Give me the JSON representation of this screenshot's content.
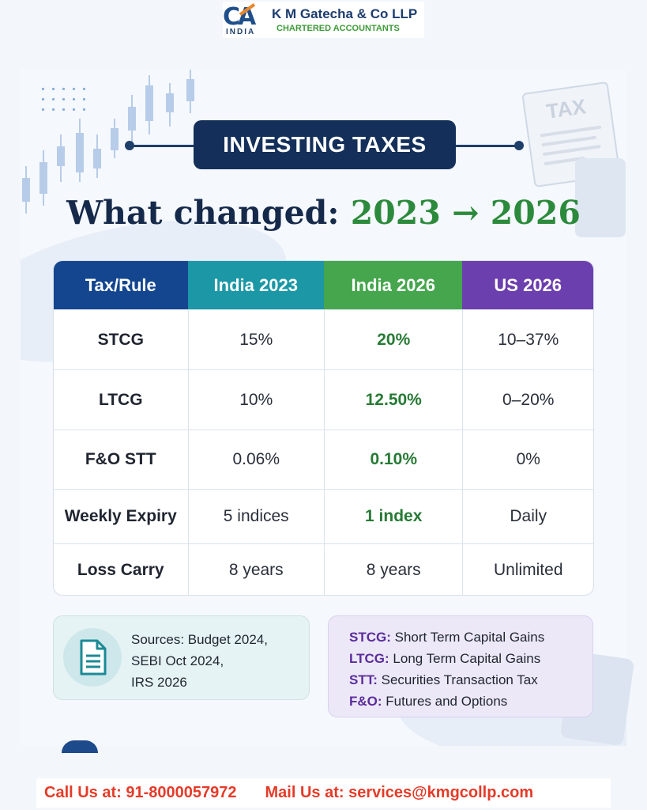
{
  "logo": {
    "mark": "CA",
    "country": "INDIA",
    "firm_name": "K M Gatecha & Co LLP",
    "tagline": "CHARTERED ACCOUNTANTS"
  },
  "decor": {
    "tax_doc_label": "TAX"
  },
  "title": {
    "badge": "INVESTING TAXES",
    "headline_prefix": "What changed:",
    "headline_years": "2023 → 2026"
  },
  "table": {
    "headers": [
      "Tax/Rule",
      "India 2023",
      "India 2026",
      "US 2026"
    ],
    "header_colors": [
      "#13468f",
      "#1b97a6",
      "#45a64d",
      "#6c3fae"
    ],
    "rows": [
      [
        "STCG",
        "15%",
        "20%",
        "10–37%"
      ],
      [
        "LTCG",
        "10%",
        "12.50%",
        "0–20%"
      ],
      [
        "F&O STT",
        "0.06%",
        "0.10%",
        "0%"
      ],
      [
        "Weekly Expiry",
        "5 indices",
        "1 index",
        "Daily"
      ],
      [
        "Loss Carry",
        "8 years",
        "8 years",
        "Unlimited"
      ]
    ]
  },
  "sources": {
    "lines": [
      "Sources: Budget 2024,",
      "SEBI Oct 2024,",
      "IRS 2026"
    ]
  },
  "glossary": [
    {
      "term": "STCG:",
      "definition": "Short Term Capital Gains"
    },
    {
      "term": "LTCG:",
      "definition": "Long Term Capital Gains"
    },
    {
      "term": "STT:",
      "definition": "Securities Transaction Tax"
    },
    {
      "term": "F&O:",
      "definition": "Futures and Options"
    }
  ],
  "footer": {
    "call": "Call Us at: 91-8000057972",
    "mail": "Mail Us at: services@kmgcollp.com"
  }
}
